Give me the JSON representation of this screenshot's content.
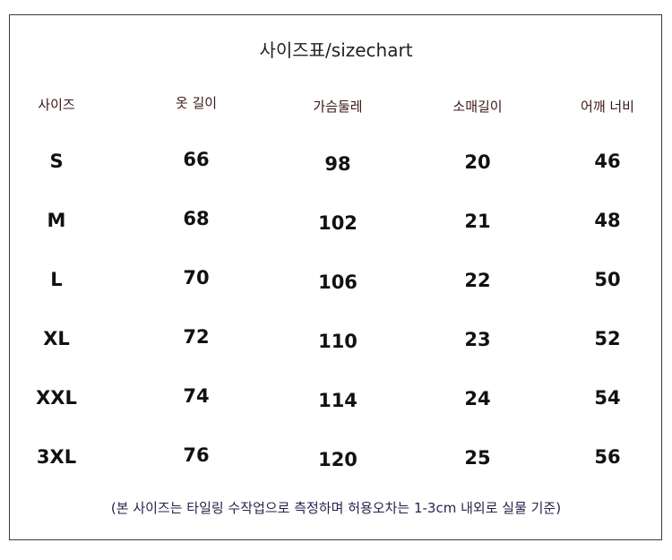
{
  "title": "사이즈표/sizechart",
  "columns": [
    "사이즈",
    "옷 길이",
    "가슴둘레",
    "소매길이",
    "어깨 너비"
  ],
  "rows": [
    [
      "S",
      "66",
      "98",
      "20",
      "46"
    ],
    [
      "M",
      "68",
      "102",
      "21",
      "48"
    ],
    [
      "L",
      "70",
      "106",
      "22",
      "50"
    ],
    [
      "XL",
      "72",
      "110",
      "23",
      "52"
    ],
    [
      "XXL",
      "74",
      "114",
      "24",
      "54"
    ],
    [
      "3XL",
      "76",
      "120",
      "25",
      "56"
    ]
  ],
  "note": "(본 사이즈는 타일링 수작업으로 측정하며 허용오차는 1-3cm 내외로 실물 기준)"
}
